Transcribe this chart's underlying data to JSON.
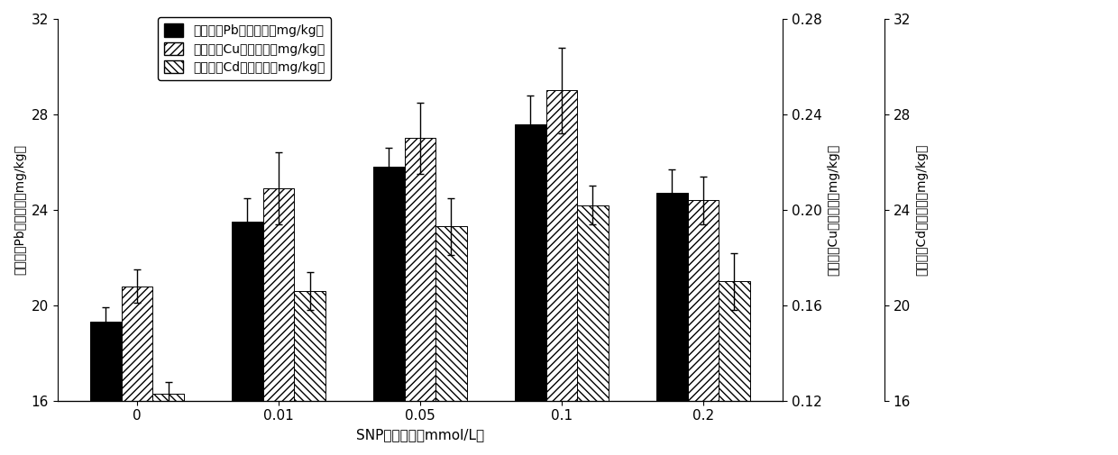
{
  "categories": [
    "0",
    "0.01",
    "0.05",
    "0.1",
    "0.2"
  ],
  "xlabel": "SNP喷洒浓度（mmol/L）",
  "ylabel_left": "叶片钓（Pb）富集量（mg/kg）",
  "ylabel_right1": "叶片铜（Cu）富集量（mg/kg）",
  "ylabel_right2": "叶片镀（Cd）富集量（mg/kg）",
  "Pb_values": [
    19.3,
    23.5,
    25.8,
    27.6,
    24.7
  ],
  "Cu_values": [
    20.8,
    24.9,
    27.0,
    29.0,
    24.4
  ],
  "Cd_values": [
    16.3,
    20.6,
    23.3,
    24.2,
    21.0
  ],
  "Pb_errors": [
    0.6,
    1.0,
    0.8,
    1.2,
    1.0
  ],
  "Cu_errors": [
    0.7,
    1.5,
    1.5,
    1.8,
    1.0
  ],
  "Cd_errors": [
    0.5,
    0.8,
    1.2,
    0.8,
    1.2
  ],
  "ylim_left": [
    16,
    32
  ],
  "yticks_left": [
    16,
    20,
    24,
    28,
    32
  ],
  "Cu_scale_min": 0.12,
  "Cu_scale_max": 0.28,
  "Cu_yticks": [
    0.12,
    0.16,
    0.2,
    0.24,
    0.28
  ],
  "Cd_scale_min": 16,
  "Cd_scale_max": 32,
  "Cd_yticks": [
    16,
    20,
    24,
    28,
    32
  ],
  "legend_labels": [
    "叶片钓（Pb）富集量（mg/kg）",
    "叶片铜（Cu）富集量（mg/kg）",
    "叶片镀（Cd）富集量（mg/kg）"
  ],
  "bar_width": 0.22,
  "figsize": [
    12.4,
    5.05
  ],
  "dpi": 100
}
